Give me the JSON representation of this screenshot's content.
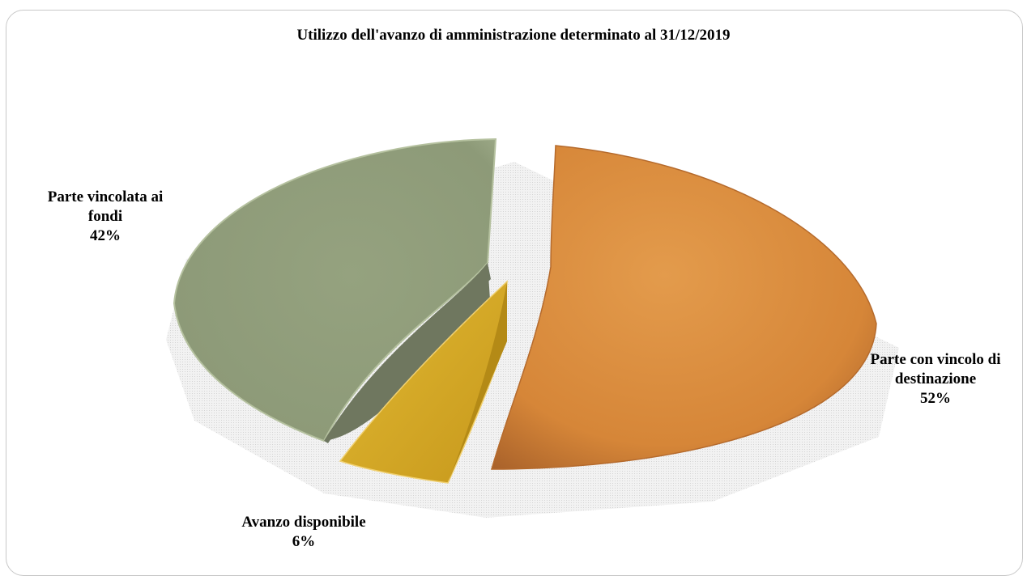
{
  "chart_data": {
    "type": "pie",
    "title": "Utilizzo dell'avanzo di amministrazione determinato al 31/12/2019",
    "slices": [
      {
        "label_lines": [
          "Parte con vincolo di",
          "destinazione"
        ],
        "percent_label": "52%",
        "value": 52,
        "color": "#d98a3a"
      },
      {
        "label_lines": [
          "Avanzo disponibile"
        ],
        "percent_label": "6%",
        "value": 6,
        "color": "#d4a926"
      },
      {
        "label_lines": [
          "Parte vincolata ai",
          "fondi"
        ],
        "percent_label": "42%",
        "value": 42,
        "color": "#93a07f"
      }
    ],
    "legend": "none"
  }
}
